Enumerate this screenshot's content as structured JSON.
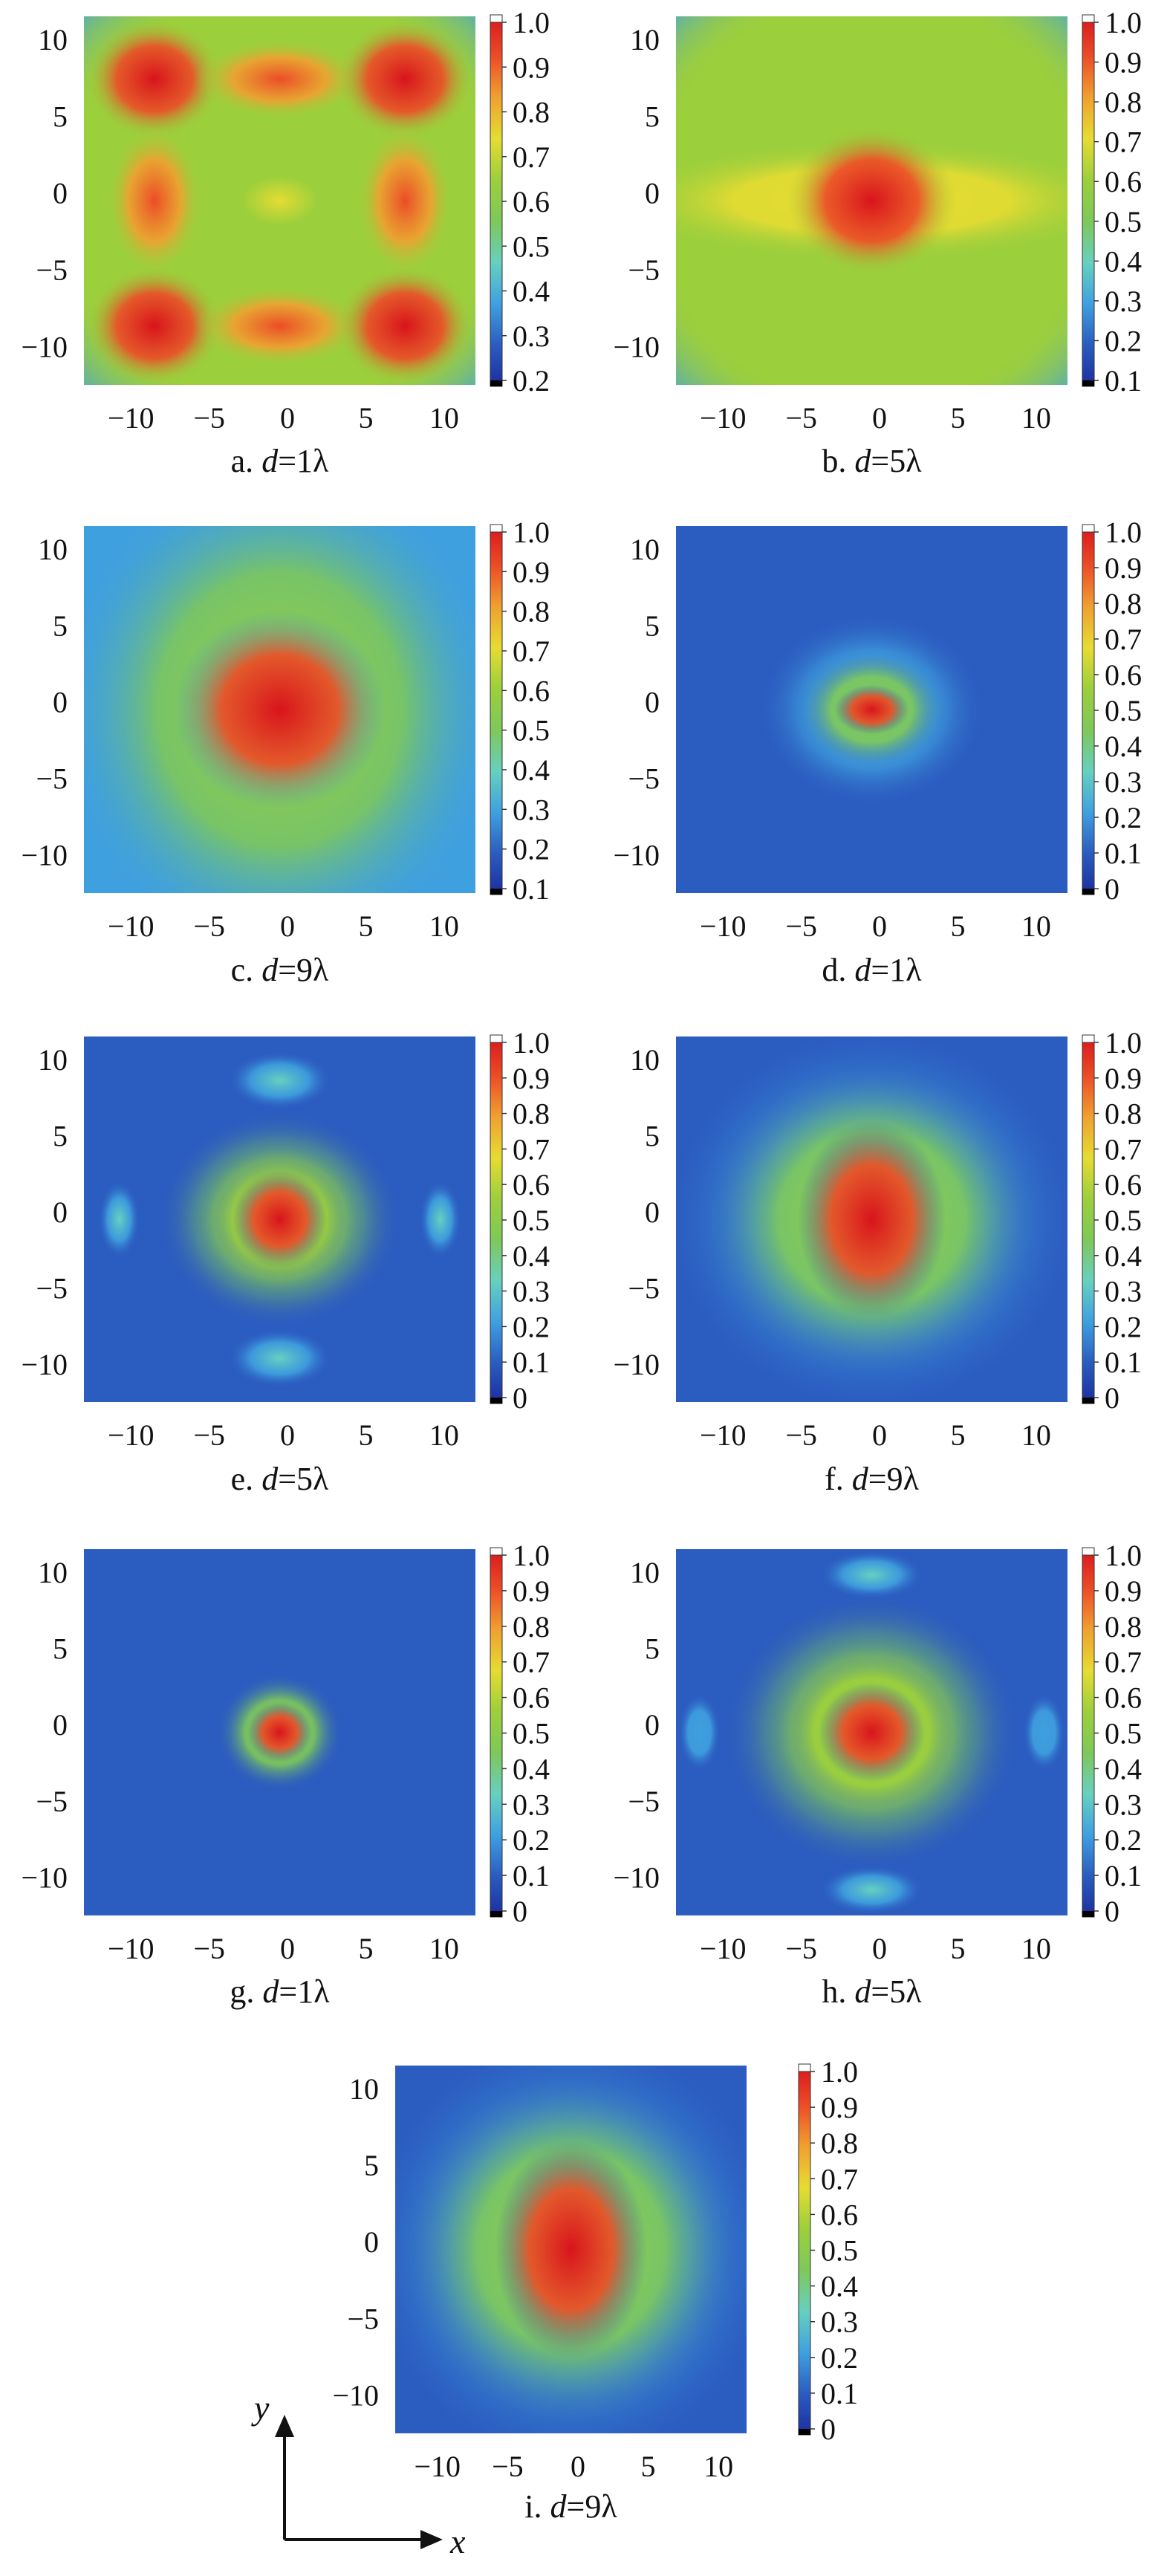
{
  "palette": {
    "stops": [
      "#1a2d9e",
      "#2b5cc0",
      "#3fa0df",
      "#67d0c0",
      "#7ec85a",
      "#9ccf3c",
      "#e6dc32",
      "#f0a030",
      "#ec4c27",
      "#d8141c"
    ],
    "cap_top": "#ffffff",
    "cap_bottom": "#000000"
  },
  "chart_data": [
    {
      "id": "a",
      "type": "heatmap",
      "caption": {
        "prefix": "a. ",
        "var": "d",
        "suffix": "=1λ"
      },
      "xticks": [
        "−10",
        "−5",
        "0",
        "5",
        "10"
      ],
      "yticks": [
        "10",
        "5",
        "0",
        "−5",
        "−10"
      ],
      "xlim": [
        -13,
        12
      ],
      "ylim": [
        -12.5,
        11.5
      ],
      "colorbar": {
        "min": 0.2,
        "max": 1.0,
        "ticks": [
          "1.0",
          "0.9",
          "0.8",
          "0.7",
          "0.6",
          "0.5",
          "0.4",
          "0.3",
          "0.2"
        ]
      },
      "description": "3×3 grid of hot spots; corner and edge-centre spots red, centre spot yellow-green; background green"
    },
    {
      "id": "b",
      "type": "heatmap",
      "caption": {
        "prefix": "b. ",
        "var": "d",
        "suffix": "=5λ"
      },
      "xticks": [
        "−10",
        "−5",
        "0",
        "5",
        "10"
      ],
      "yticks": [
        "10",
        "5",
        "0",
        "−5",
        "−10"
      ],
      "xlim": [
        -13,
        12
      ],
      "ylim": [
        -12.5,
        11.5
      ],
      "colorbar": {
        "min": 0.1,
        "max": 1.0,
        "ticks": [
          "1.0",
          "0.9",
          "0.8",
          "0.7",
          "0.6",
          "0.5",
          "0.4",
          "0.3",
          "0.2",
          "0.1"
        ]
      },
      "description": "central red spot with horizontal yellow band, broad green square plateau"
    },
    {
      "id": "c",
      "type": "heatmap",
      "caption": {
        "prefix": "c. ",
        "var": "d",
        "suffix": "=9λ"
      },
      "xticks": [
        "−10",
        "−5",
        "0",
        "5",
        "10"
      ],
      "yticks": [
        "10",
        "5",
        "0",
        "−5",
        "−10"
      ],
      "xlim": [
        -13,
        12
      ],
      "ylim": [
        -12.5,
        11.5
      ],
      "colorbar": {
        "min": 0.1,
        "max": 1.0,
        "ticks": [
          "1.0",
          "0.9",
          "0.8",
          "0.7",
          "0.6",
          "0.5",
          "0.4",
          "0.3",
          "0.2",
          "0.1"
        ]
      },
      "description": "large central red disc, green surround, cyan side lobes"
    },
    {
      "id": "d",
      "type": "heatmap",
      "caption": {
        "prefix": "d. ",
        "var": "d",
        "suffix": "=1λ"
      },
      "xticks": [
        "−10",
        "−5",
        "0",
        "5",
        "10"
      ],
      "yticks": [
        "10",
        "5",
        "0",
        "−5",
        "−10"
      ],
      "xlim": [
        -13,
        12
      ],
      "ylim": [
        -12.5,
        11.5
      ],
      "colorbar": {
        "min": 0,
        "max": 1.0,
        "ticks": [
          "1.0",
          "0.9",
          "0.8",
          "0.7",
          "0.6",
          "0.5",
          "0.4",
          "0.3",
          "0.2",
          "0.1",
          "0"
        ]
      },
      "description": "small central red spot, concentric cyan rings, blue background"
    },
    {
      "id": "e",
      "type": "heatmap",
      "caption": {
        "prefix": "e. ",
        "var": "d",
        "suffix": "=5λ"
      },
      "xticks": [
        "−10",
        "−5",
        "0",
        "5",
        "10"
      ],
      "yticks": [
        "10",
        "5",
        "0",
        "−5",
        "−10"
      ],
      "xlim": [
        -13,
        12
      ],
      "ylim": [
        -12.5,
        11.5
      ],
      "colorbar": {
        "min": 0,
        "max": 1.0,
        "ticks": [
          "1.0",
          "0.9",
          "0.8",
          "0.7",
          "0.6",
          "0.5",
          "0.4",
          "0.3",
          "0.2",
          "0.1",
          "0"
        ]
      },
      "description": "central red spot inside green ring, four cyan side lobes"
    },
    {
      "id": "f",
      "type": "heatmap",
      "caption": {
        "prefix": "f. ",
        "var": "d",
        "suffix": "=9λ"
      },
      "xticks": [
        "−10",
        "−5",
        "0",
        "5",
        "10"
      ],
      "yticks": [
        "10",
        "5",
        "0",
        "−5",
        "−10"
      ],
      "xlim": [
        -13,
        12
      ],
      "ylim": [
        -12.5,
        11.5
      ],
      "colorbar": {
        "min": 0,
        "max": 1.0,
        "ticks": [
          "1.0",
          "0.9",
          "0.8",
          "0.7",
          "0.6",
          "0.5",
          "0.4",
          "0.3",
          "0.2",
          "0.1",
          "0"
        ]
      },
      "description": "large rounded square, red elliptical core, green-cyan outer region"
    },
    {
      "id": "g",
      "type": "heatmap",
      "caption": {
        "prefix": "g. ",
        "var": "d",
        "suffix": "=1λ"
      },
      "xticks": [
        "−10",
        "−5",
        "0",
        "5",
        "10"
      ],
      "yticks": [
        "10",
        "5",
        "0",
        "−5",
        "−10"
      ],
      "xlim": [
        -13,
        12
      ],
      "ylim": [
        -12.5,
        11.5
      ],
      "colorbar": {
        "min": 0,
        "max": 1.0,
        "ticks": [
          "1.0",
          "0.9",
          "0.8",
          "0.7",
          "0.6",
          "0.5",
          "0.4",
          "0.3",
          "0.2",
          "0.1",
          "0"
        ]
      },
      "description": "small central spot, green ring, blue background"
    },
    {
      "id": "h",
      "type": "heatmap",
      "caption": {
        "prefix": "h. ",
        "var": "d",
        "suffix": "=5λ"
      },
      "xticks": [
        "−10",
        "−5",
        "0",
        "5",
        "10"
      ],
      "yticks": [
        "10",
        "5",
        "0",
        "−5",
        "−10"
      ],
      "xlim": [
        -13,
        12
      ],
      "ylim": [
        -12.5,
        11.5
      ],
      "colorbar": {
        "min": 0,
        "max": 1.0,
        "ticks": [
          "1.0",
          "0.9",
          "0.8",
          "0.7",
          "0.6",
          "0.5",
          "0.4",
          "0.3",
          "0.2",
          "0.1",
          "0"
        ]
      },
      "description": "central red spot in green rounded square, four cyan side lobes"
    },
    {
      "id": "i",
      "type": "heatmap",
      "caption": {
        "prefix": "i. ",
        "var": "d",
        "suffix": "=9λ"
      },
      "xticks": [
        "−10",
        "−5",
        "0",
        "5",
        "10"
      ],
      "yticks": [
        "10",
        "5",
        "0",
        "−5",
        "−10"
      ],
      "xlim": [
        -13,
        12
      ],
      "ylim": [
        -12.5,
        11.5
      ],
      "colorbar": {
        "min": 0,
        "max": 1.0,
        "ticks": [
          "1.0",
          "0.9",
          "0.8",
          "0.7",
          "0.6",
          "0.5",
          "0.4",
          "0.3",
          "0.2",
          "0.1",
          "0"
        ]
      },
      "description": "large rounded square, red elliptical core, green-cyan outer region"
    }
  ],
  "axes_indicator": {
    "x_label": "x",
    "y_label": "y"
  }
}
